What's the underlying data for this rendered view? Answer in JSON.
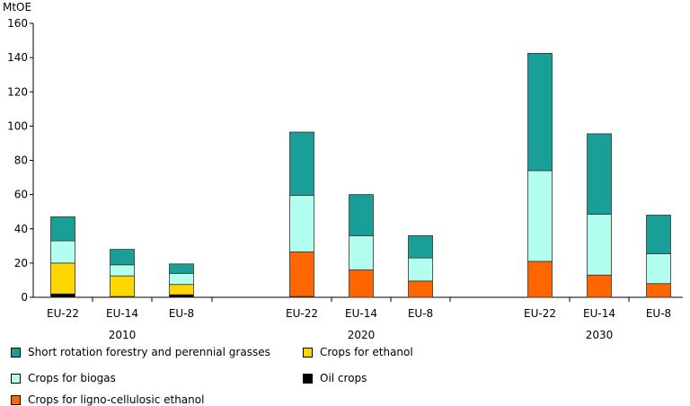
{
  "chart_data": {
    "type": "bar",
    "stacked": true,
    "ylabel": "MtOE",
    "ylim": [
      0,
      160
    ],
    "yticks": [
      0,
      20,
      40,
      60,
      80,
      100,
      120,
      140,
      160
    ],
    "grid": false,
    "legend_position": "bottom-left",
    "groups": [
      {
        "year": "2010",
        "categories": [
          "EU-22",
          "EU-14",
          "EU-8"
        ]
      },
      {
        "year": "2020",
        "categories": [
          "EU-22",
          "EU-14",
          "EU-8"
        ]
      },
      {
        "year": "2030",
        "categories": [
          "EU-22",
          "EU-14",
          "EU-8"
        ]
      }
    ],
    "series": [
      {
        "name": "Oil crops",
        "color": "#000000",
        "values": [
          [
            2,
            0.5,
            1.5
          ],
          [
            0.5,
            0,
            0
          ],
          [
            0,
            0,
            0
          ]
        ]
      },
      {
        "name": "Crops for ethanol",
        "color": "#ffd700",
        "values": [
          [
            18,
            12,
            6
          ],
          [
            0,
            0,
            0
          ],
          [
            0,
            0,
            0
          ]
        ]
      },
      {
        "name": "Crops for ligno-cellulosic ethanol",
        "color": "#ff6600",
        "values": [
          [
            0,
            0,
            0
          ],
          [
            26,
            16,
            9.5
          ],
          [
            21,
            13,
            8
          ]
        ]
      },
      {
        "name": "Crops for biogas",
        "color": "#b3ffef",
        "values": [
          [
            13,
            6.5,
            6.5
          ],
          [
            33,
            20,
            13.5
          ],
          [
            53,
            35.5,
            17.5
          ]
        ]
      },
      {
        "name": "Short rotation forestry and perennial grasses",
        "color": "#1a9e98",
        "values": [
          [
            14,
            9,
            5.5
          ],
          [
            37,
            24,
            13
          ],
          [
            68.5,
            47,
            22.5
          ]
        ]
      }
    ]
  },
  "legend": [
    {
      "label": "Short rotation forestry and perennial grasses",
      "color": "#1a9e98"
    },
    {
      "label": "Crops for ethanol",
      "color": "#ffd700"
    },
    {
      "label": "Crops for biogas",
      "color": "#b3ffef"
    },
    {
      "label": "Oil crops",
      "color": "#000000"
    },
    {
      "label": "Crops for ligno-cellulosic ethanol",
      "color": "#ff6600"
    }
  ]
}
